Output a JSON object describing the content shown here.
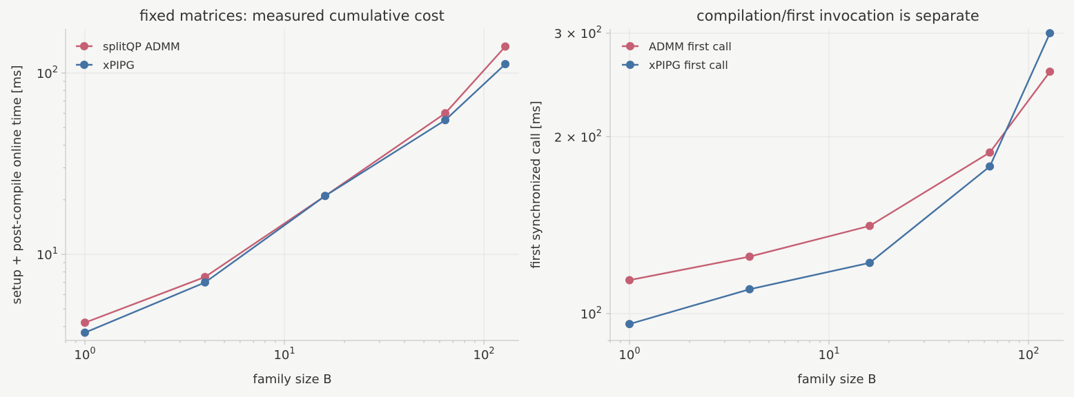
{
  "chart_data": [
    {
      "type": "line",
      "title": "fixed matrices: measured cumulative cost",
      "xlabel": "family size B",
      "ylabel": "setup + post-compile online time [ms]",
      "xscale": "log",
      "yscale": "log",
      "xlim": [
        0.8,
        150
      ],
      "ylim": [
        3.35,
        175
      ],
      "x": [
        1,
        4,
        16,
        64,
        128
      ],
      "xticks": [
        {
          "value": 1,
          "base": "10",
          "exp": "0"
        },
        {
          "value": 10,
          "base": "10",
          "exp": "1"
        },
        {
          "value": 100,
          "base": "10",
          "exp": "2"
        }
      ],
      "yticks": [
        {
          "value": 10,
          "base": "10",
          "exp": "1"
        },
        {
          "value": 100,
          "base": "10",
          "exp": "2"
        }
      ],
      "grid": true,
      "legend_position": "top-left",
      "series": [
        {
          "name": "splitQP ADMM",
          "color": "#c55f73",
          "values": [
            4.2,
            7.5,
            21.0,
            60.0,
            140.0
          ]
        },
        {
          "name": "xPIPG",
          "color": "#4472a3",
          "values": [
            3.7,
            7.0,
            21.0,
            55.0,
            112.0
          ]
        }
      ]
    },
    {
      "type": "line",
      "title": "compilation/first invocation is separate",
      "xlabel": "family size B",
      "ylabel": "first synchronized call [ms]",
      "xscale": "log",
      "yscale": "log",
      "xlim": [
        0.8,
        150
      ],
      "ylim": [
        90,
        305
      ],
      "x": [
        1,
        4,
        16,
        64,
        128
      ],
      "xticks": [
        {
          "value": 1,
          "base": "10",
          "exp": "0"
        },
        {
          "value": 10,
          "base": "10",
          "exp": "1"
        },
        {
          "value": 100,
          "base": "10",
          "exp": "2"
        }
      ],
      "yticks": [
        {
          "value": 100,
          "base": "10",
          "exp": "2",
          "mult": ""
        },
        {
          "value": 200,
          "base": "10",
          "exp": "2",
          "mult": "2 × "
        },
        {
          "value": 300,
          "base": "10",
          "exp": "2",
          "mult": "3 × "
        }
      ],
      "grid": true,
      "legend_position": "top-left",
      "series": [
        {
          "name": "ADMM first call",
          "color": "#c55f73",
          "values": [
            114,
            125,
            141,
            188,
            258
          ]
        },
        {
          "name": "xPIPG first call",
          "color": "#4472a3",
          "values": [
            96,
            110,
            122,
            178,
            300
          ]
        }
      ]
    }
  ]
}
